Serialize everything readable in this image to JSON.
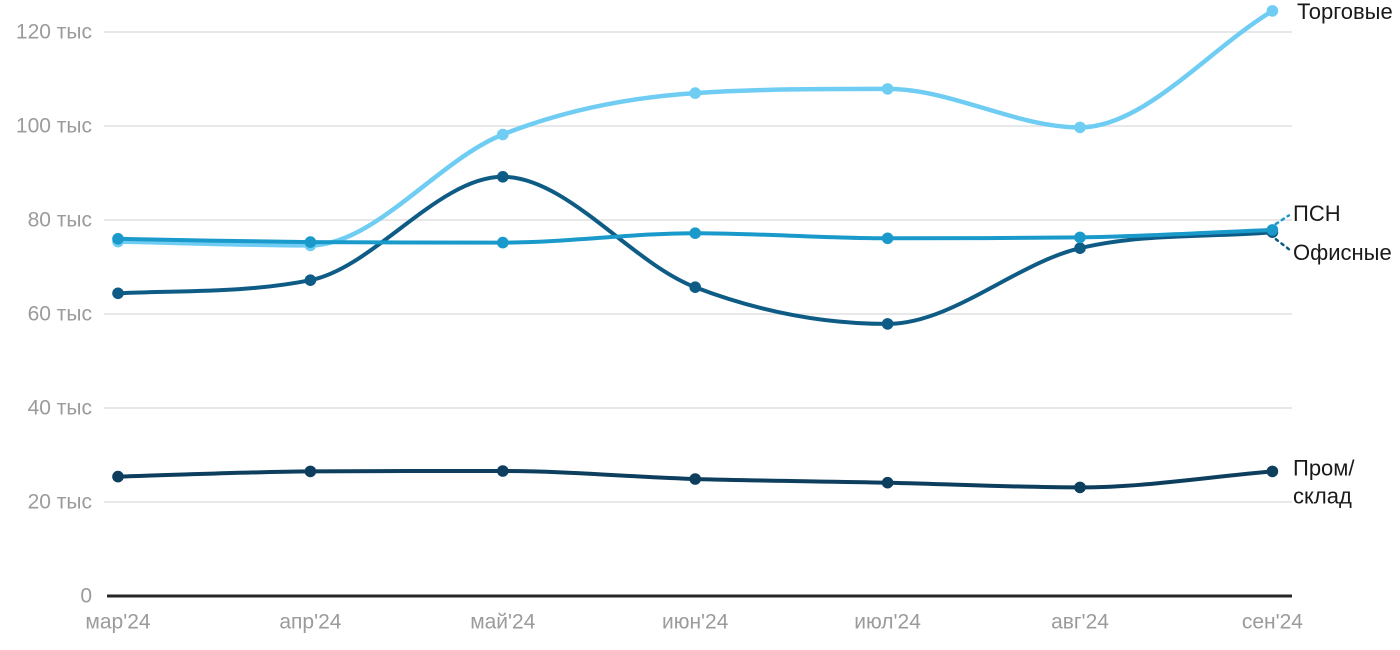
{
  "chart_data": {
    "type": "line",
    "title": "",
    "x_labels": [
      "мар'24",
      "апр'24",
      "май'24",
      "июн'24",
      "июл'24",
      "авг'24",
      "сен'24"
    ],
    "y_axis": {
      "tick_values": [
        0,
        20,
        40,
        60,
        80,
        100,
        120
      ],
      "tick_labels": [
        "0",
        "20 тыс",
        "40 тыс",
        "60 тыс",
        "80 тыс",
        "100 тыс",
        "120 тыс"
      ],
      "range": [
        0,
        127
      ],
      "unit": "тыс"
    },
    "grid": true,
    "legend_position": "right-inline-labels",
    "series": [
      {
        "key": "torgovye",
        "name": "Торговые",
        "color": "#6fcdf4",
        "values": [
          75.4,
          74.6,
          98.2,
          107.0,
          107.9,
          99.7,
          124.5
        ],
        "label_lines": [
          "Торговые"
        ],
        "label_offset": 0,
        "leader": false
      },
      {
        "key": "ofisnye",
        "name": "Офисные",
        "color": "#0e5c85",
        "values": [
          64.4,
          67.2,
          89.2,
          65.7,
          57.9,
          74.0,
          77.4
        ],
        "label_lines": [
          "Офисные"
        ],
        "label_offset": 20,
        "leader": true
      },
      {
        "key": "psn",
        "name": "ПСН",
        "color": "#1a9aca",
        "values": [
          76.0,
          75.3,
          75.2,
          77.2,
          76.1,
          76.3,
          77.9
        ],
        "label_lines": [
          "ПСН"
        ],
        "label_offset": -17,
        "leader": true
      },
      {
        "key": "prom-sklad",
        "name": "Пром/склад",
        "color": "#0e3e5e",
        "values": [
          25.4,
          26.5,
          26.6,
          24.9,
          24.1,
          23.1,
          26.5
        ],
        "label_lines": [
          "Пром/",
          "склад"
        ],
        "label_offset": 0,
        "leader": false
      }
    ],
    "colors": {
      "grid": "#e8e8e8",
      "axis": "#262626",
      "tick_text": "#9b9b9b",
      "label_text": "#1a1a1a"
    }
  }
}
